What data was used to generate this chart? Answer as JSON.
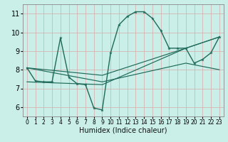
{
  "xlabel": "Humidex (Indice chaleur)",
  "background_color": "#caeee8",
  "grid_color": "#d8aaaa",
  "line_color": "#1e6b5a",
  "xlim": [
    -0.5,
    23.5
  ],
  "ylim": [
    5.5,
    11.5
  ],
  "xticks": [
    0,
    1,
    2,
    3,
    4,
    5,
    6,
    7,
    8,
    9,
    10,
    11,
    12,
    13,
    14,
    15,
    16,
    17,
    18,
    19,
    20,
    21,
    22,
    23
  ],
  "yticks": [
    6,
    7,
    8,
    9,
    10,
    11
  ],
  "main_line": {
    "x": [
      0,
      1,
      2,
      3,
      4,
      5,
      6,
      7,
      8,
      9,
      10,
      11,
      12,
      13,
      14,
      15,
      16,
      17,
      18,
      19,
      20,
      21,
      22,
      23
    ],
    "y": [
      8.1,
      7.4,
      7.35,
      7.35,
      9.7,
      7.6,
      7.25,
      7.2,
      5.95,
      5.85,
      8.9,
      10.4,
      10.85,
      11.1,
      11.1,
      10.75,
      10.1,
      9.15,
      9.15,
      9.15,
      8.35,
      8.55,
      8.9,
      9.75
    ]
  },
  "line1": {
    "x": [
      0,
      9,
      19,
      23
    ],
    "y": [
      8.1,
      7.7,
      9.15,
      9.75
    ]
  },
  "line2": {
    "x": [
      0,
      9,
      19,
      23
    ],
    "y": [
      8.1,
      7.35,
      8.35,
      8.0
    ]
  },
  "line3": {
    "x": [
      0,
      9,
      19,
      23
    ],
    "y": [
      7.35,
      7.2,
      9.15,
      9.75
    ]
  }
}
